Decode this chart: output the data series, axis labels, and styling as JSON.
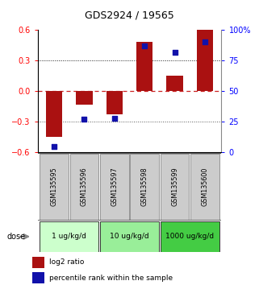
{
  "title": "GDS2924 / 19565",
  "samples": [
    "GSM135595",
    "GSM135596",
    "GSM135597",
    "GSM135598",
    "GSM135599",
    "GSM135600"
  ],
  "log2_ratio": [
    -0.45,
    -0.13,
    -0.23,
    0.48,
    0.15,
    0.6
  ],
  "percentile_rank": [
    5,
    27,
    28,
    87,
    82,
    90
  ],
  "ylim_left": [
    -0.6,
    0.6
  ],
  "ylim_right": [
    0,
    100
  ],
  "yticks_left": [
    -0.6,
    -0.3,
    0,
    0.3,
    0.6
  ],
  "yticks_right": [
    0,
    25,
    50,
    75,
    100
  ],
  "ytick_labels_right": [
    "0",
    "25",
    "50",
    "75",
    "100%"
  ],
  "bar_color": "#AA1111",
  "dot_color": "#1111AA",
  "hline_color": "#CC2222",
  "dotted_color": "#555555",
  "dose_groups": [
    {
      "label": "1 ug/kg/d",
      "start": 0,
      "end": 2,
      "color": "#ccffcc"
    },
    {
      "label": "10 ug/kg/d",
      "start": 2,
      "end": 4,
      "color": "#99ee99"
    },
    {
      "label": "1000 ug/kg/d",
      "start": 4,
      "end": 6,
      "color": "#44cc44"
    }
  ],
  "sample_box_color": "#cccccc",
  "background_color": "#ffffff"
}
